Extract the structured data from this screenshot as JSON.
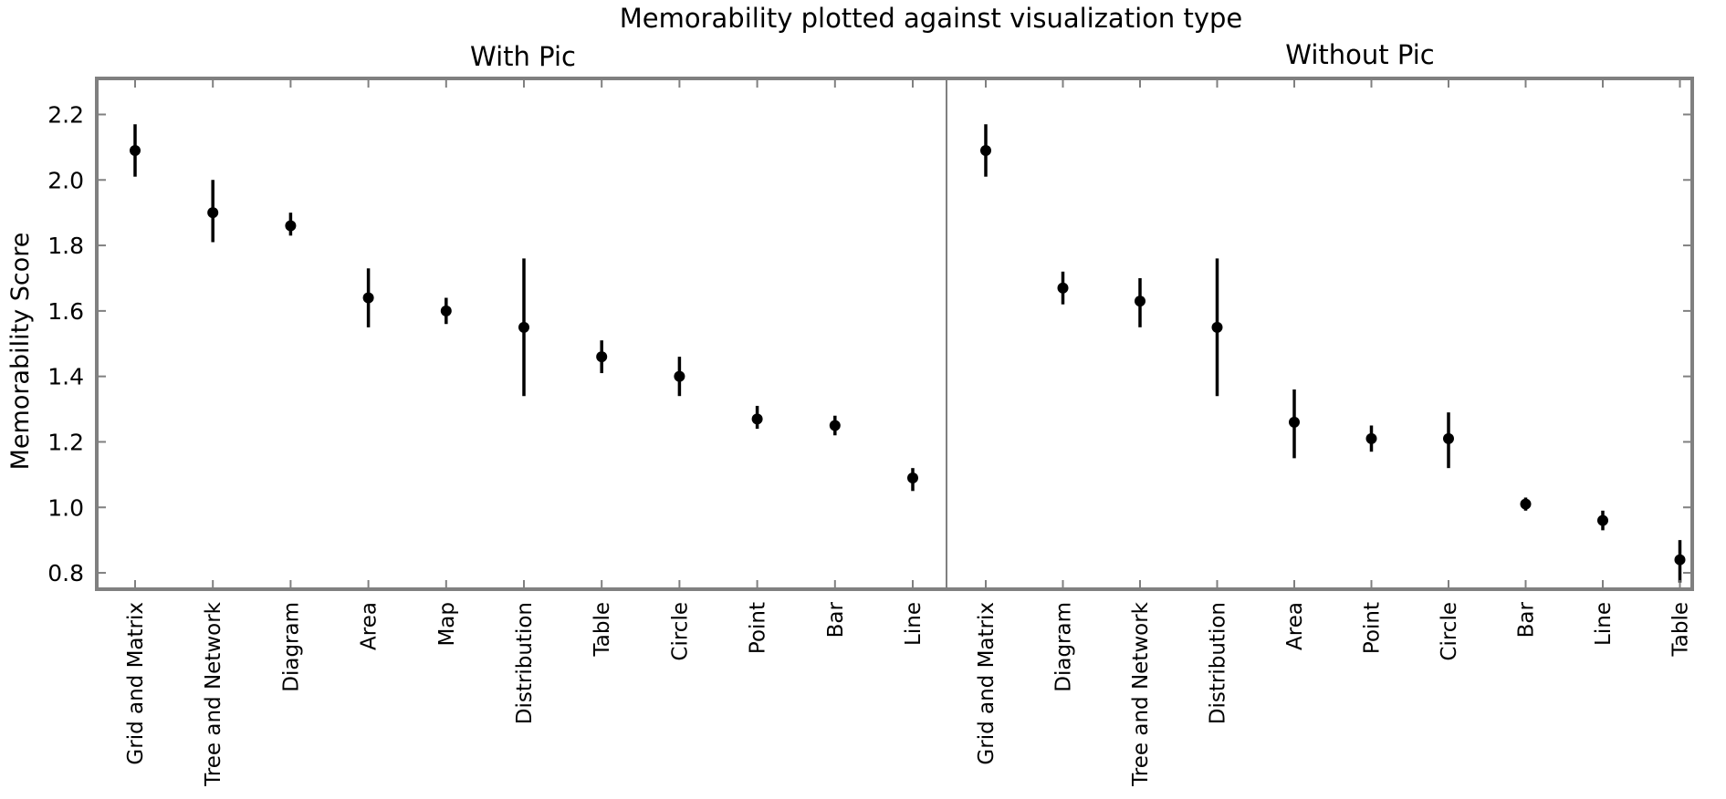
{
  "chart_data": {
    "type": "scatter",
    "title": "Memorability plotted against visualization type",
    "ylabel": "Memorability Score",
    "ylim": [
      0.75,
      2.31
    ],
    "yticks": [
      "0.8",
      "1.0",
      "1.2",
      "1.4",
      "1.6",
      "1.8",
      "2.0",
      "2.2"
    ],
    "marker_color": "#000000",
    "frame_color": "#808080",
    "grid": false,
    "panels": [
      {
        "title": "With Pic",
        "categories": [
          "Grid and Matrix",
          "Tree and Network",
          "Diagram",
          "Area",
          "Map",
          "Distribution",
          "Table",
          "Circle",
          "Point",
          "Bar",
          "Line"
        ],
        "values": [
          2.09,
          1.9,
          1.86,
          1.64,
          1.6,
          1.55,
          1.46,
          1.4,
          1.27,
          1.25,
          1.09
        ],
        "error_low": [
          2.01,
          1.81,
          1.83,
          1.55,
          1.56,
          1.34,
          1.41,
          1.34,
          1.24,
          1.22,
          1.05
        ],
        "error_high": [
          2.17,
          2.0,
          1.9,
          1.73,
          1.64,
          1.76,
          1.51,
          1.46,
          1.31,
          1.28,
          1.12
        ]
      },
      {
        "title": "Without Pic",
        "categories": [
          "Grid and Matrix",
          "Diagram",
          "Tree and Network",
          "Distribution",
          "Area",
          "Point",
          "Circle",
          "Bar",
          "Line",
          "Table"
        ],
        "values": [
          2.09,
          1.67,
          1.63,
          1.55,
          1.26,
          1.21,
          1.21,
          1.01,
          0.96,
          0.84
        ],
        "error_low": [
          2.01,
          1.62,
          1.55,
          1.34,
          1.15,
          1.17,
          1.12,
          0.99,
          0.93,
          0.77
        ],
        "error_high": [
          2.17,
          1.72,
          1.7,
          1.76,
          1.36,
          1.25,
          1.29,
          1.03,
          0.99,
          0.9
        ]
      }
    ]
  }
}
